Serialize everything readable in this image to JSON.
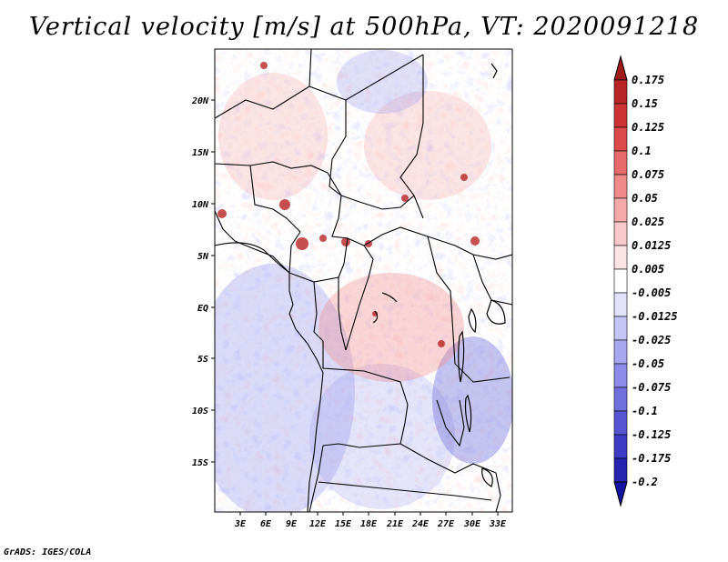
{
  "title": "Vertical velocity [m/s] at 500hPa, VT: 2020091218",
  "footer": "GrADS: IGES/COLA",
  "map": {
    "region": "Central Africa",
    "lat_labels": [
      "20N",
      "15N",
      "10N",
      "5N",
      "EQ",
      "5S",
      "10S",
      "15S"
    ],
    "lon_labels": [
      "3E",
      "6E",
      "9E",
      "12E",
      "15E",
      "18E",
      "21E",
      "24E",
      "27E",
      "30E",
      "33E"
    ]
  },
  "colorbar": {
    "labels": [
      "0.175",
      "0.15",
      "0.125",
      "0.1",
      "0.075",
      "0.05",
      "0.025",
      "0.0125",
      "0.005",
      "-0.005",
      "-0.0125",
      "-0.025",
      "-0.05",
      "-0.075",
      "-0.1",
      "-0.125",
      "-0.175",
      "-0.2"
    ],
    "colors": [
      "#a01a1a",
      "#b82424",
      "#cc3333",
      "#dd4a4a",
      "#e66a6a",
      "#ee8a8a",
      "#f5aaaa",
      "#f9c8c8",
      "#fde4e4",
      "#ffffff",
      "#e2e2fb",
      "#c6c6f6",
      "#a8a8f0",
      "#8c8ce8",
      "#7070de",
      "#5656d2",
      "#3c3cc4",
      "#2424b0",
      "#1414a0"
    ]
  }
}
